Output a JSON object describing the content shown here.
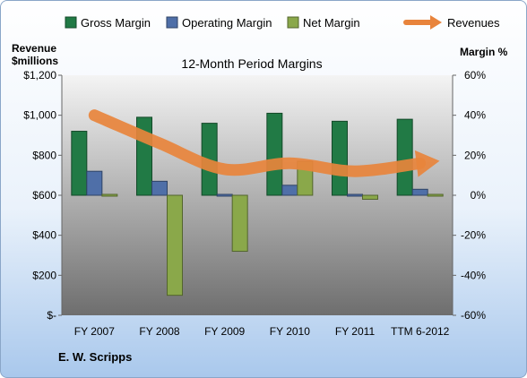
{
  "chart_data": {
    "type": "bar",
    "title": "12-Month Period Margins",
    "company": "E. W. Scripps",
    "left_axis": {
      "label_line1": "Revenue",
      "label_line2": "$millions",
      "min": 0,
      "max": 1200,
      "step": 200,
      "tick_labels": [
        "$-",
        "$200",
        "$400",
        "$600",
        "$800",
        "$1,000",
        "$1,200"
      ]
    },
    "right_axis": {
      "label": "Margin %",
      "min": -60,
      "max": 60,
      "step": 20,
      "tick_labels": [
        "-60%",
        "-40%",
        "-20%",
        "0%",
        "20%",
        "40%",
        "60%"
      ]
    },
    "categories": [
      "FY 2007",
      "FY 2008",
      "FY 2009",
      "FY 2010",
      "FY 2011",
      "TTM 6-2012"
    ],
    "series": [
      {
        "name": "Gross Margin",
        "axis": "right",
        "kind": "bar",
        "color": "#217a45",
        "values": [
          32,
          39,
          36,
          41,
          37,
          38
        ]
      },
      {
        "name": "Operating Margin",
        "axis": "right",
        "kind": "bar",
        "color": "#4f6fa8",
        "values": [
          12,
          7,
          0,
          5,
          0,
          3
        ]
      },
      {
        "name": "Net Margin",
        "axis": "right",
        "kind": "bar",
        "color": "#8aa84a",
        "values": [
          0,
          -50,
          -28,
          17,
          -2,
          0
        ]
      },
      {
        "name": "Revenues",
        "axis": "left",
        "kind": "trend-arrow",
        "color": "#e8843c",
        "values": [
          1000,
          860,
          730,
          760,
          720,
          760
        ]
      }
    ],
    "grid": false,
    "legend": "top"
  }
}
